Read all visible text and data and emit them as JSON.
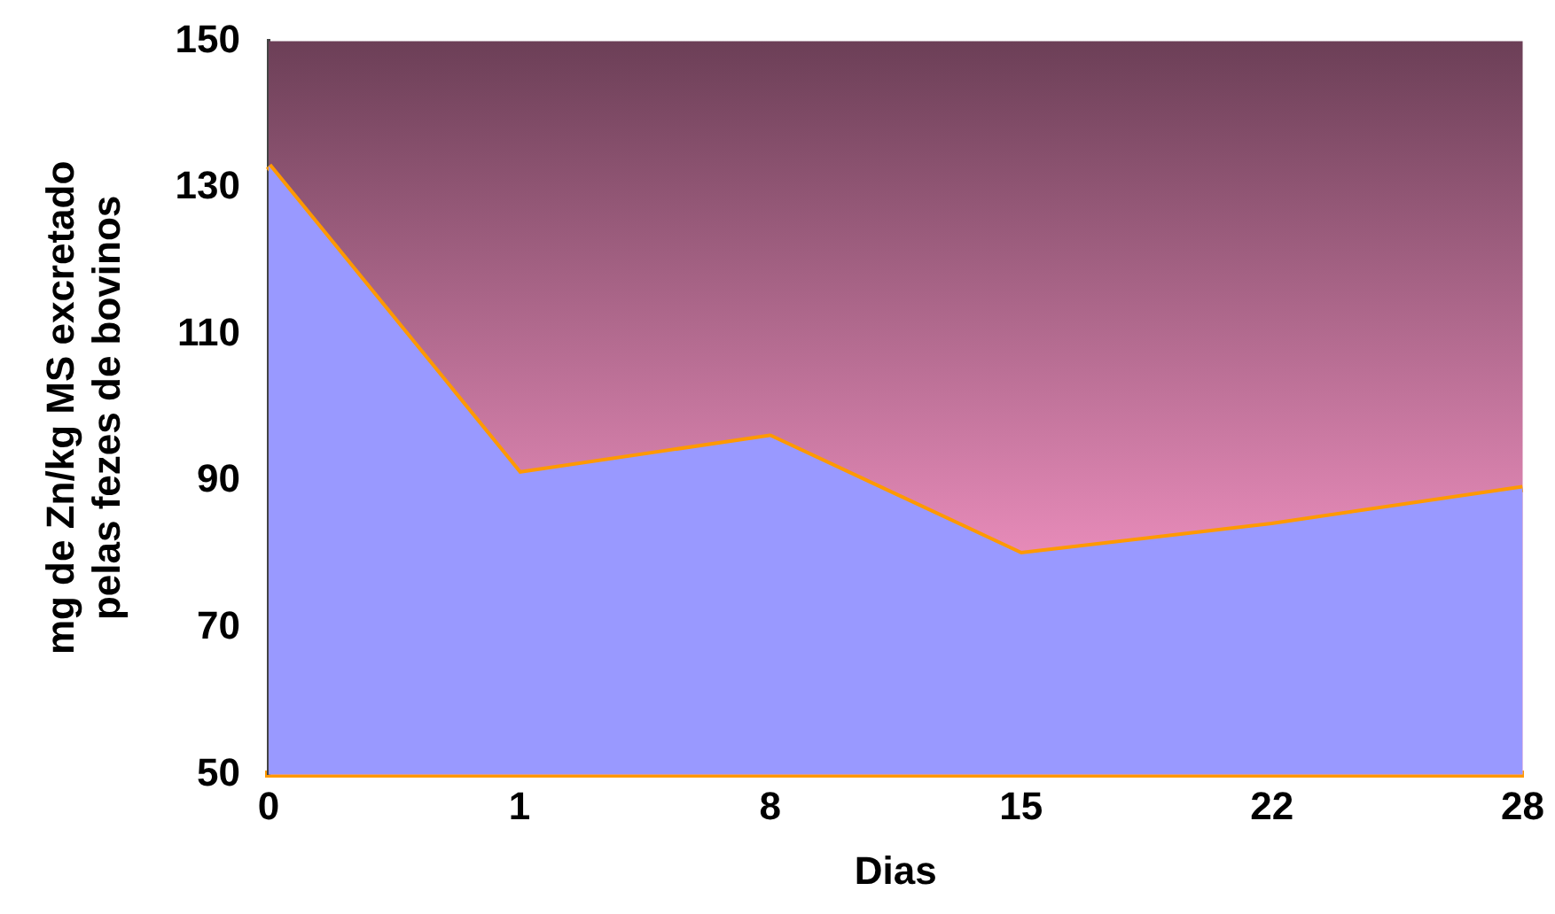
{
  "chart_data": {
    "type": "area",
    "xlabel": "Dias",
    "ylabel": "mg de Zn/kg MS excretado\npelas fezes de bovinos",
    "categories": [
      "0",
      "1",
      "8",
      "15",
      "22",
      "28"
    ],
    "series": [
      {
        "color": "#9999ff",
        "values": [
          133,
          91,
          96,
          80,
          84,
          89
        ]
      },
      {
        "type": "line",
        "color": "#ff9900",
        "values": [
          133,
          91,
          96,
          80,
          84,
          89
        ]
      }
    ],
    "ylim": [
      50,
      150
    ],
    "yticks": [
      50,
      70,
      90,
      110,
      130,
      150
    ],
    "grid": false,
    "legend": false,
    "marker": "none"
  }
}
